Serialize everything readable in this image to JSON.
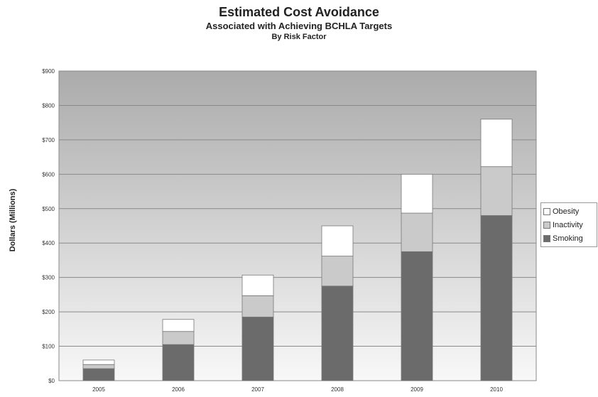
{
  "colors": {
    "smoking": "#6b6b6b",
    "inactivity": "#cacaca",
    "obesity": "#ffffff",
    "plot_top": "#ababab",
    "plot_bottom": "#f8f8f8",
    "gridline": "#8a8a8a"
  },
  "chart_data": {
    "type": "bar",
    "stacked": true,
    "title": "Estimated Cost Avoidance",
    "subtitle": "Associated with Achieving BCHLA Targets",
    "subtitle2": "By Risk Factor",
    "xlabel": "",
    "ylabel": "Dollars (Millions)",
    "ylim": [
      0,
      900
    ],
    "yticks": [
      0,
      100,
      200,
      300,
      400,
      500,
      600,
      700,
      800,
      900
    ],
    "ytick_labels": [
      "$0",
      "$100",
      "$200",
      "$300",
      "$400",
      "$500",
      "$600",
      "$700",
      "$800",
      "$900"
    ],
    "categories": [
      "2005",
      "2006",
      "2007",
      "2008",
      "2009",
      "2010"
    ],
    "series": [
      {
        "name": "Smoking",
        "values": [
          35,
          105,
          185,
          275,
          375,
          480
        ]
      },
      {
        "name": "Inactivity",
        "values": [
          12,
          38,
          62,
          87,
          112,
          142
        ]
      },
      {
        "name": "Obesity",
        "values": [
          13,
          35,
          60,
          88,
          113,
          138
        ]
      }
    ],
    "legend_position": "right",
    "grid": true
  }
}
